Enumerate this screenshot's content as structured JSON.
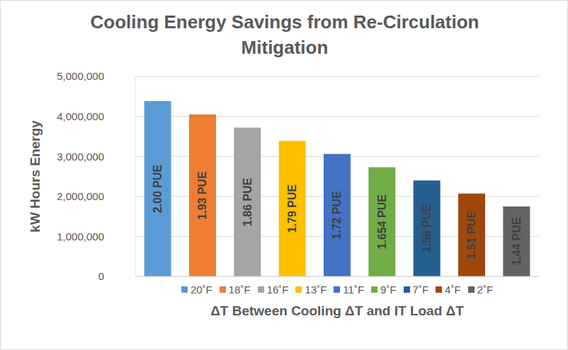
{
  "chart_data": {
    "type": "bar",
    "title": "Cooling Energy Savings from Re-Circulation Mitigation",
    "x_label": "ΔT Between Cooling ΔT and IT Load ΔT",
    "y_label": "kW Hours Energy",
    "categories": [
      "20˚F",
      "18˚F",
      "16˚F",
      "13˚F",
      "11˚F",
      "9˚F",
      "7˚F",
      "4˚F",
      "2˚F"
    ],
    "values": [
      4380000,
      4050000,
      3720000,
      3390000,
      3060000,
      2730000,
      2400000,
      2070000,
      1750000
    ],
    "bar_labels": [
      "2.00 PUE",
      "1.93 PUE",
      "1.86 PUE",
      "1.79 PUE",
      "1.72 PUE",
      "1.654 PUE",
      "1.58 PUE",
      "1.51 PUE",
      "1.44 PUE"
    ],
    "colors": [
      "#5b9bd5",
      "#ed7d31",
      "#a5a5a5",
      "#ffc000",
      "#4472c4",
      "#70ad47",
      "#255e91",
      "#9e480e",
      "#636363"
    ],
    "ylim": [
      0,
      5000000
    ],
    "yticks": [
      0,
      {
        "value": 1000000,
        "label": "1,000,000"
      },
      {
        "value": 2000000,
        "label": "2,000,000"
      },
      {
        "value": 3000000,
        "label": "3,000,000"
      },
      {
        "value": 4000000,
        "label": "4,000,000"
      },
      {
        "value": 5000000,
        "label": "5,000,000"
      }
    ],
    "grid": true,
    "legend": "bottom",
    "tick_labels": "y"
  }
}
